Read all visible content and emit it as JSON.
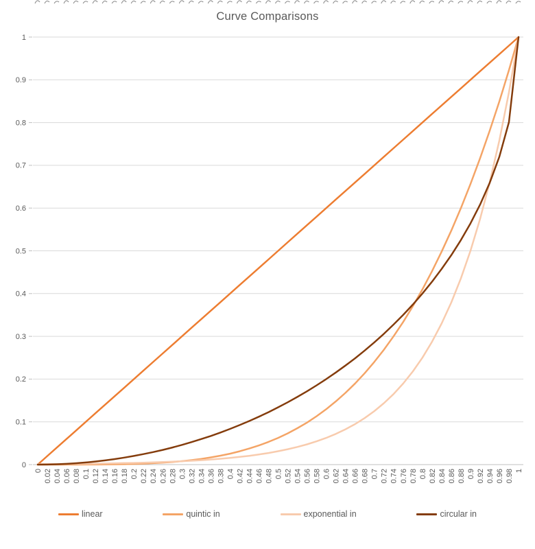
{
  "title": "Curve Comparisons",
  "colors": {
    "background": "#FFFFFF",
    "title_text": "#595959",
    "axis_text": "#595959",
    "gridline": "#D9D9D9",
    "axis_line": "#BFBFBF",
    "clipped_marks": "#8C8C8C"
  },
  "chart_data": {
    "type": "line",
    "title": "Curve Comparisons",
    "xlabel": "",
    "ylabel": "",
    "xlim": [
      0,
      1
    ],
    "ylim": [
      0,
      1
    ],
    "grid": "horizontal",
    "legend_position": "bottom",
    "x_tick_labels": [
      "0",
      "0.02",
      "0.04",
      "0.06",
      "0.08",
      "0.1",
      "0.12",
      "0.14",
      "0.16",
      "0.18",
      "0.2",
      "0.22",
      "0.24",
      "0.26",
      "0.28",
      "0.3",
      "0.32",
      "0.34",
      "0.36",
      "0.38",
      "0.4",
      "0.42",
      "0.44",
      "0.46",
      "0.48",
      "0.5",
      "0.52",
      "0.54",
      "0.56",
      "0.58",
      "0.6",
      "0.62",
      "0.64",
      "0.66",
      "0.68",
      "0.7",
      "0.72",
      "0.74",
      "0.76",
      "0.78",
      "0.8",
      "0.82",
      "0.84",
      "0.86",
      "0.88",
      "0.9",
      "0.92",
      "0.94",
      "0.96",
      "0.98",
      "1"
    ],
    "y_tick_labels": [
      "0",
      "0.1",
      "0.2",
      "0.3",
      "0.4",
      "0.5",
      "0.6",
      "0.7",
      "0.8",
      "0.9",
      "1"
    ],
    "series": [
      {
        "name": "linear",
        "color": "#ED7D31",
        "values": [
          0,
          0.02,
          0.04,
          0.06,
          0.08,
          0.1,
          0.12,
          0.14,
          0.16,
          0.18,
          0.2,
          0.22,
          0.24,
          0.26,
          0.28,
          0.3,
          0.32,
          0.34,
          0.36,
          0.38,
          0.4,
          0.42,
          0.44,
          0.46,
          0.48,
          0.5,
          0.52,
          0.54,
          0.56,
          0.58,
          0.6,
          0.62,
          0.64,
          0.66,
          0.68,
          0.7,
          0.72,
          0.74,
          0.76,
          0.78,
          0.8,
          0.82,
          0.84,
          0.86,
          0.88,
          0.9,
          0.92,
          0.94,
          0.96,
          0.98,
          1
        ]
      },
      {
        "name": "quintic in",
        "color": "#F4A466",
        "values": [
          0,
          0,
          0,
          0,
          0,
          0.0001,
          0.0002,
          0.0004,
          0.0007,
          0.001,
          0.0016,
          0.0023,
          0.0033,
          0.0046,
          0.0061,
          0.0081,
          0.0105,
          0.0134,
          0.0168,
          0.0209,
          0.0256,
          0.0311,
          0.0375,
          0.0448,
          0.0531,
          0.0625,
          0.0731,
          0.085,
          0.0983,
          0.1132,
          0.1296,
          0.1478,
          0.1678,
          0.1897,
          0.2138,
          0.2401,
          0.2687,
          0.2999,
          0.3336,
          0.3702,
          0.4096,
          0.4521,
          0.4979,
          0.547,
          0.5997,
          0.6561,
          0.7164,
          0.7808,
          0.8493,
          0.9224,
          1
        ]
      },
      {
        "name": "exponential in",
        "color": "#F8CBAD",
        "values": [
          0.001,
          0.0011,
          0.0013,
          0.0015,
          0.0017,
          0.002,
          0.0023,
          0.0026,
          0.003,
          0.0035,
          0.0039,
          0.0045,
          0.0052,
          0.006,
          0.0069,
          0.0078,
          0.009,
          0.0103,
          0.0118,
          0.0136,
          0.0156,
          0.0179,
          0.0206,
          0.0237,
          0.0272,
          0.0313,
          0.0359,
          0.0412,
          0.0474,
          0.0544,
          0.0625,
          0.0718,
          0.0825,
          0.0947,
          0.1088,
          0.125,
          0.1436,
          0.1649,
          0.1895,
          0.2176,
          0.25,
          0.2872,
          0.3299,
          0.3789,
          0.4353,
          0.5,
          0.5743,
          0.6598,
          0.7579,
          0.8706,
          1
        ]
      },
      {
        "name": "circular in",
        "color": "#843C0C",
        "values": [
          0,
          0.0002,
          0.0008,
          0.0018,
          0.0032,
          0.005,
          0.0072,
          0.0098,
          0.0129,
          0.0163,
          0.0202,
          0.0245,
          0.0292,
          0.0344,
          0.04,
          0.0461,
          0.0527,
          0.0597,
          0.067,
          0.075,
          0.0835,
          0.0925,
          0.102,
          0.1121,
          0.1227,
          0.134,
          0.1458,
          0.1583,
          0.1715,
          0.1854,
          0.2,
          0.2154,
          0.2316,
          0.2487,
          0.2668,
          0.2859,
          0.306,
          0.3274,
          0.3501,
          0.3742,
          0.4,
          0.4276,
          0.4574,
          0.4897,
          0.525,
          0.5641,
          0.6081,
          0.6588,
          0.72,
          0.801,
          1
        ]
      }
    ]
  }
}
